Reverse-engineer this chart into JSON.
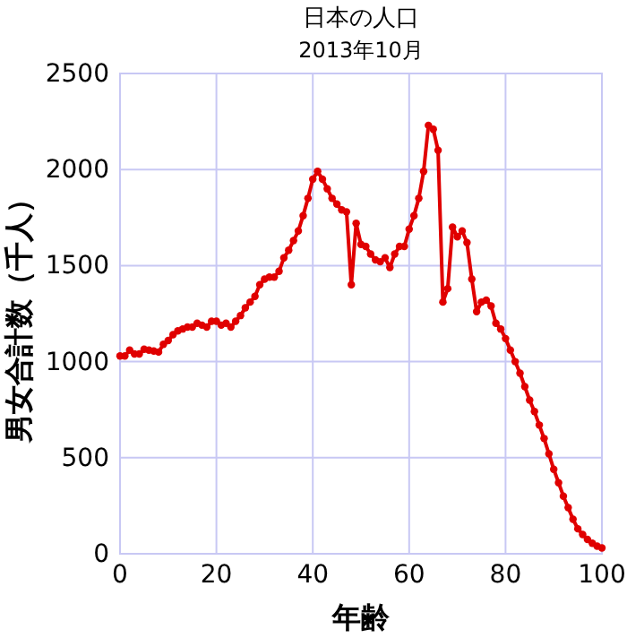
{
  "chart_data": {
    "type": "line",
    "title": "日本の人口",
    "subtitle": "2013年10月",
    "xlabel": "年齢",
    "ylabel": "男女合計数（千人）",
    "x": [
      0,
      1,
      2,
      3,
      4,
      5,
      6,
      7,
      8,
      9,
      10,
      11,
      12,
      13,
      14,
      15,
      16,
      17,
      18,
      19,
      20,
      21,
      22,
      23,
      24,
      25,
      26,
      27,
      28,
      29,
      30,
      31,
      32,
      33,
      34,
      35,
      36,
      37,
      38,
      39,
      40,
      41,
      42,
      43,
      44,
      45,
      46,
      47,
      48,
      49,
      50,
      51,
      52,
      53,
      54,
      55,
      56,
      57,
      58,
      59,
      60,
      61,
      62,
      63,
      64,
      65,
      66,
      67,
      68,
      69,
      70,
      71,
      72,
      73,
      74,
      75,
      76,
      77,
      78,
      79,
      80,
      81,
      82,
      83,
      84,
      85,
      86,
      87,
      88,
      89,
      90,
      91,
      92,
      93,
      94,
      95,
      96,
      97,
      98,
      99,
      100
    ],
    "series": [
      {
        "color": "#e00000",
        "values": [
          1030,
          1030,
          1060,
          1040,
          1040,
          1065,
          1060,
          1055,
          1050,
          1090,
          1110,
          1140,
          1160,
          1170,
          1180,
          1180,
          1200,
          1190,
          1180,
          1210,
          1210,
          1190,
          1200,
          1180,
          1210,
          1240,
          1280,
          1310,
          1340,
          1400,
          1430,
          1440,
          1440,
          1470,
          1540,
          1580,
          1630,
          1680,
          1760,
          1850,
          1950,
          1990,
          1950,
          1900,
          1850,
          1820,
          1790,
          1780,
          1400,
          1720,
          1610,
          1600,
          1560,
          1530,
          1520,
          1540,
          1490,
          1560,
          1600,
          1600,
          1690,
          1760,
          1850,
          1990,
          2230,
          2210,
          2100,
          1310,
          1380,
          1700,
          1650,
          1680,
          1620,
          1430,
          1260,
          1310,
          1320,
          1290,
          1200,
          1170,
          1120,
          1060,
          1000,
          940,
          870,
          800,
          740,
          670,
          600,
          520,
          440,
          370,
          300,
          240,
          180,
          130,
          100,
          75,
          55,
          40,
          30
        ]
      }
    ],
    "xlim": [
      0,
      100
    ],
    "ylim": [
      0,
      2500
    ],
    "xticks": [
      0,
      20,
      40,
      60,
      80,
      100
    ],
    "yticks": [
      0,
      500,
      1000,
      1500,
      2000,
      2500
    ],
    "grid": true,
    "marker": "circle",
    "line_style": "solid"
  }
}
